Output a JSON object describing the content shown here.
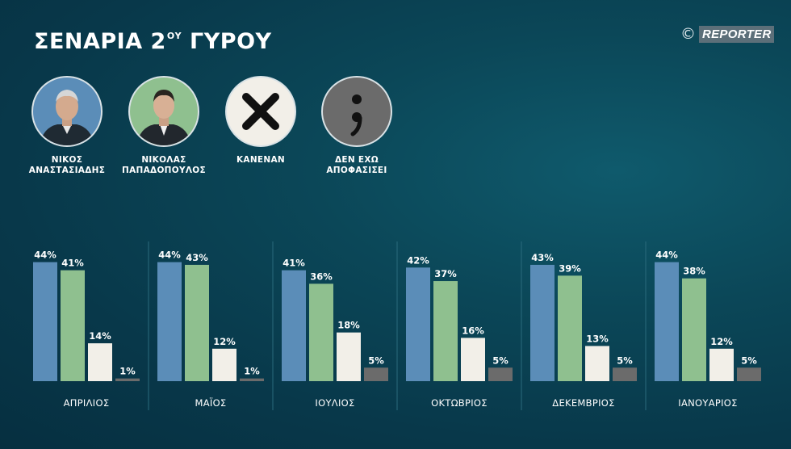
{
  "header": {
    "title_main": "ΣΕΝΑΡΙΑ 2",
    "title_sup": "ΟΥ",
    "title_end": " ΓΥΡΟΥ",
    "brand_copyright": "©",
    "brand_name": "REPORTER"
  },
  "legend": [
    {
      "line1": "ΝΙΚΟΣ",
      "line2": "ΑΝΑΣΤΑΣΙΑΔΗΣ",
      "color": "#5b8db8",
      "icon": "candidate-portrait-icon"
    },
    {
      "line1": "ΝΙΚΟΛΑΣ",
      "line2": "ΠΑΠΑΔΟΠΟΥΛΟΣ",
      "color": "#8fc08f",
      "icon": "candidate-portrait-icon"
    },
    {
      "line1": "ΚΑΝΕΝΑΝ",
      "line2": "",
      "color": "#f2efe8",
      "icon": "x-icon"
    },
    {
      "line1": "ΔΕΝ ΕΧΩ",
      "line2": "ΑΠΟΦΑΣΙΣΕΙ",
      "color": "#6b6b6b",
      "icon": "semicolon-icon"
    }
  ],
  "chart_data": {
    "type": "bar",
    "title": "ΣΕΝΑΡΙΑ 2ΟΥ ΓΥΡΟΥ",
    "categories": [
      "ΑΠΡΙΛΙΟΣ",
      "ΜΑΪΟΣ",
      "ΙΟΥΛΙΟΣ",
      "ΟΚΤΩΒΡΙΟΣ",
      "ΔΕΚΕΜΒΡΙΟΣ",
      "ΙΑΝΟΥΑΡΙΟΣ"
    ],
    "series": [
      {
        "name": "ΝΙΚΟΣ ΑΝΑΣΤΑΣΙΑΔΗΣ",
        "color": "#5b8db8",
        "values": [
          44,
          44,
          41,
          42,
          43,
          44
        ]
      },
      {
        "name": "ΝΙΚΟΛΑΣ ΠΑΠΑΔΟΠΟΥΛΟΣ",
        "color": "#8fc08f",
        "values": [
          41,
          43,
          36,
          37,
          39,
          38
        ]
      },
      {
        "name": "ΚΑΝΕΝΑΝ",
        "color": "#f2efe8",
        "values": [
          14,
          12,
          18,
          16,
          13,
          12
        ]
      },
      {
        "name": "ΔΕΝ ΕΧΩ ΑΠΟΦΑΣΙΣΕΙ",
        "color": "#6b6b6b",
        "values": [
          1,
          1,
          5,
          5,
          5,
          5
        ]
      }
    ],
    "value_suffix": "%",
    "ylim": [
      0,
      44
    ],
    "grid": false,
    "legend_position": "top"
  }
}
